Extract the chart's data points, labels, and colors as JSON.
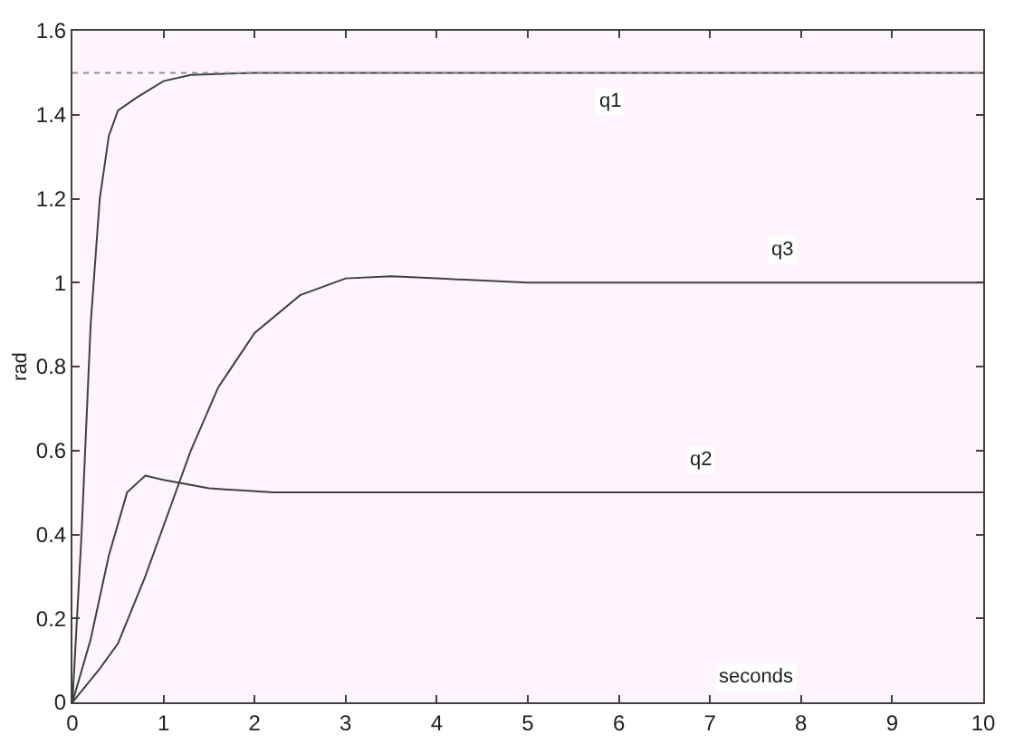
{
  "chart_data": {
    "type": "line",
    "xlabel": "seconds",
    "ylabel": "rad",
    "xlim": [
      0,
      10
    ],
    "ylim": [
      0,
      1.6
    ],
    "xticks": [
      0,
      1,
      2,
      3,
      4,
      5,
      6,
      7,
      8,
      9,
      10
    ],
    "yticks": [
      0,
      0.2,
      0.4,
      0.6,
      0.8,
      1,
      1.2,
      1.4,
      1.6
    ],
    "grid": false,
    "legend": false,
    "line_style": "solid",
    "ref_lines": [
      {
        "axis": "y",
        "value": 1.5,
        "label": null,
        "color": "#909090",
        "line_style": "dotted"
      }
    ],
    "series": [
      {
        "name": "q1",
        "color": "#404040",
        "x": [
          0,
          0.1,
          0.2,
          0.3,
          0.4,
          0.5,
          0.7,
          1,
          1.3,
          2,
          10
        ],
        "values": [
          0,
          0.4,
          0.9,
          1.2,
          1.35,
          1.41,
          1.44,
          1.48,
          1.495,
          1.5,
          1.5
        ]
      },
      {
        "name": "q3",
        "color": "#404040",
        "x": [
          0,
          0.3,
          0.5,
          0.8,
          1,
          1.3,
          1.6,
          2,
          2.5,
          3,
          3.5,
          4,
          5,
          10
        ],
        "values": [
          0,
          0.08,
          0.14,
          0.3,
          0.42,
          0.6,
          0.75,
          0.88,
          0.97,
          1.01,
          1.015,
          1.01,
          1.0,
          1.0
        ]
      },
      {
        "name": "q2",
        "color": "#404040",
        "x": [
          0,
          0.2,
          0.4,
          0.6,
          0.8,
          1,
          1.5,
          2.2,
          10
        ],
        "values": [
          0,
          0.15,
          0.35,
          0.5,
          0.54,
          0.53,
          0.51,
          0.5,
          0.5
        ]
      }
    ]
  }
}
